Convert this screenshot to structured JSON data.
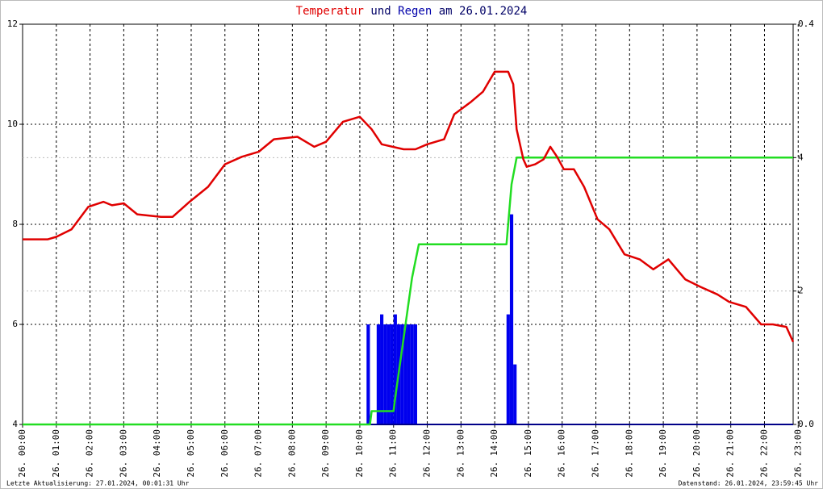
{
  "chart_data": {
    "type": "line",
    "title_parts": [
      "Temperatur",
      "und",
      "Regen",
      "am 26.01.2024"
    ],
    "title_colors": [
      "#e00000",
      "#000066",
      "#0000aa",
      "#000066"
    ],
    "footer_left": "Letzte Aktualisierung: 27.01.2024, 00:01:31 Uhr",
    "footer_right": "Datenstand: 26.01.2024, 23:59:45 Uhr",
    "xlim": [
      0,
      22.85
    ],
    "xticks": [
      {
        "value": 0,
        "label": "26. 00:00"
      },
      {
        "value": 1,
        "label": "26. 01:00"
      },
      {
        "value": 2,
        "label": "26. 02:00"
      },
      {
        "value": 3,
        "label": "26. 03:00"
      },
      {
        "value": 4,
        "label": "26. 04:00"
      },
      {
        "value": 5,
        "label": "26. 05:00"
      },
      {
        "value": 6,
        "label": "26. 06:00"
      },
      {
        "value": 7,
        "label": "26. 07:00"
      },
      {
        "value": 8,
        "label": "26. 08:00"
      },
      {
        "value": 9,
        "label": "26. 09:00"
      },
      {
        "value": 10,
        "label": "26. 10:00"
      },
      {
        "value": 11,
        "label": "26. 11:00"
      },
      {
        "value": 12,
        "label": "26. 12:00"
      },
      {
        "value": 13,
        "label": "26. 13:00"
      },
      {
        "value": 14,
        "label": "26. 14:00"
      },
      {
        "value": 15,
        "label": "26. 15:00"
      },
      {
        "value": 16,
        "label": "26. 16:00"
      },
      {
        "value": 17,
        "label": "26. 17:00"
      },
      {
        "value": 18,
        "label": "26. 18:00"
      },
      {
        "value": 19,
        "label": "26. 19:00"
      },
      {
        "value": 20,
        "label": "26. 20:00"
      },
      {
        "value": 21,
        "label": "26. 21:00"
      },
      {
        "value": 22,
        "label": "26. 22:00"
      },
      {
        "value": 23,
        "label": "26. 23:00"
      }
    ],
    "ylim": [
      4,
      12
    ],
    "yticks": [
      4,
      6,
      8,
      10,
      12
    ],
    "y2lim": [
      0,
      0.4
    ],
    "y2ticks": [
      {
        "value": 0,
        "label": "0.0"
      },
      0.4
    ],
    "y3lim": [
      0,
      6
    ],
    "y3ticks": [
      2,
      4
    ],
    "y3color": "#22bb22",
    "grid": true,
    "series": [
      {
        "name": "Temperatur",
        "color": "#e00000",
        "x": [
          0,
          0.75,
          1.0,
          1.45,
          1.95,
          2.4,
          2.65,
          3.0,
          3.4,
          4.1,
          4.45,
          4.95,
          5.5,
          6.0,
          6.5,
          7.0,
          7.45,
          8.15,
          8.65,
          9.0,
          9.5,
          10.0,
          10.35,
          10.65,
          11.3,
          11.65,
          12.0,
          12.5,
          12.8,
          13.3,
          13.65,
          14.0,
          14.4,
          14.55,
          14.65,
          14.85,
          14.95,
          15.2,
          15.45,
          15.65,
          15.85,
          16.05,
          16.35,
          16.65,
          17.05,
          17.4,
          17.85,
          18.3,
          18.7,
          19.15,
          19.65,
          20.1,
          20.6,
          20.95,
          21.45,
          21.9,
          22.25,
          22.65,
          22.85
        ],
        "values": [
          7.7,
          7.7,
          7.75,
          7.9,
          8.35,
          8.45,
          8.38,
          8.42,
          8.2,
          8.15,
          8.15,
          8.45,
          8.75,
          9.2,
          9.35,
          9.45,
          9.7,
          9.75,
          9.55,
          9.65,
          10.05,
          10.15,
          9.9,
          9.6,
          9.5,
          9.5,
          9.6,
          9.7,
          10.2,
          10.45,
          10.65,
          11.05,
          11.05,
          10.8,
          9.9,
          9.3,
          9.15,
          9.2,
          9.3,
          9.55,
          9.35,
          9.1,
          9.1,
          8.75,
          8.1,
          7.9,
          7.4,
          7.3,
          7.1,
          7.3,
          6.9,
          6.75,
          6.6,
          6.45,
          6.35,
          6.0,
          6.0,
          5.95,
          5.65
        ]
      },
      {
        "name": "Regen",
        "type": "bar",
        "axis": "y2",
        "color": "#0000ee",
        "width": 0.1,
        "x": [
          10.2,
          10.5,
          10.6,
          10.7,
          10.8,
          10.9,
          11.0,
          11.1,
          11.2,
          11.3,
          11.4,
          11.5,
          11.6,
          14.35,
          14.45,
          14.55
        ],
        "values": [
          0.1,
          0.1,
          0.11,
          0.1,
          0.1,
          0.1,
          0.11,
          0.1,
          0.1,
          0.1,
          0.1,
          0.1,
          0.1,
          0.11,
          0.21,
          0.06
        ]
      },
      {
        "type": "line",
        "axis": "y3",
        "color": "#22dd22",
        "x": [
          0,
          10.3,
          10.35,
          11.0,
          11.05,
          11.3,
          11.55,
          11.75,
          14.35,
          14.5,
          14.65,
          22.85
        ],
        "values": [
          0,
          0,
          0.2,
          0.2,
          0.4,
          1.3,
          2.2,
          2.7,
          2.7,
          3.6,
          4.0,
          4.0
        ]
      }
    ]
  }
}
